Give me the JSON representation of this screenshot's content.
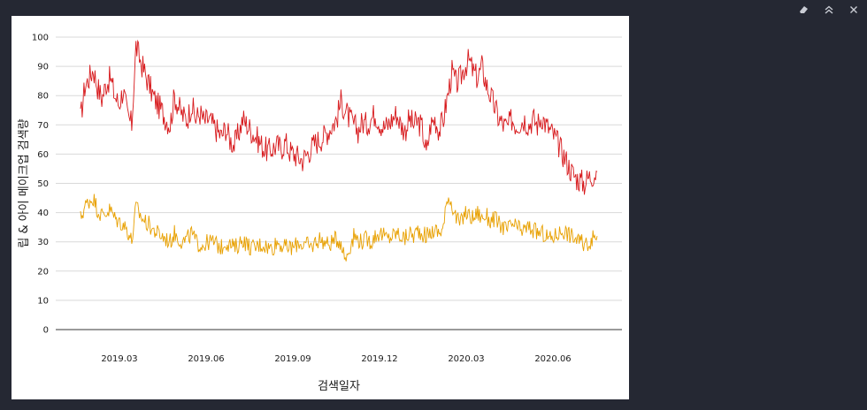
{
  "panel": {
    "icons": [
      {
        "name": "eraser-icon"
      },
      {
        "name": "collapse-icon"
      },
      {
        "name": "close-icon"
      }
    ]
  },
  "chart_data": {
    "type": "line",
    "title": "",
    "xlabel": "검색일자",
    "ylabel": "립 & 아이 메이크업 검색량",
    "ylim": [
      0,
      100
    ],
    "yticks": [
      0,
      10,
      20,
      30,
      40,
      50,
      60,
      70,
      80,
      90,
      100
    ],
    "xticks": [
      "2019.03",
      "2019.06",
      "2019.09",
      "2019.12",
      "2020.03",
      "2020.06"
    ],
    "grid": true,
    "x_start": "2019.01",
    "x_end": "2020.08",
    "series": [
      {
        "color": "#d7191c",
        "values": [
          72,
          83,
          86,
          89,
          83,
          79,
          84,
          86,
          80,
          77,
          82,
          73,
          70,
          97,
          92,
          88,
          84,
          80,
          77,
          75,
          72,
          70,
          80,
          76,
          73,
          72,
          77,
          72,
          74,
          71,
          72,
          70,
          68,
          66,
          69,
          65,
          63,
          67,
          72,
          70,
          68,
          66,
          64,
          62,
          61,
          62,
          63,
          62,
          64,
          61,
          60,
          59,
          58,
          60,
          62,
          64,
          65,
          66,
          68,
          70,
          72,
          78,
          75,
          72,
          70,
          68,
          71,
          70,
          72,
          74,
          71,
          69,
          70,
          72,
          74,
          70,
          68,
          72,
          70,
          71,
          69,
          60,
          70,
          72,
          68,
          72,
          80,
          88,
          84,
          86,
          90,
          92,
          88,
          86,
          90,
          84,
          80,
          76,
          72,
          70,
          69,
          72,
          70,
          71,
          72,
          70,
          72,
          70,
          73,
          70,
          68,
          66,
          63,
          60,
          57,
          54,
          52,
          51,
          50,
          52,
          53,
          54
        ]
      },
      {
        "color": "#e8a000",
        "values": [
          38,
          42,
          44,
          45,
          41,
          39,
          40,
          41,
          38,
          37,
          36,
          34,
          30,
          42,
          39,
          37,
          36,
          34,
          33,
          32,
          31,
          30,
          33,
          31,
          30,
          31,
          33,
          30,
          29,
          29,
          30,
          30,
          29,
          28,
          30,
          29,
          28,
          29,
          31,
          29,
          28,
          28,
          29,
          29,
          28,
          28,
          30,
          29,
          28,
          28,
          28,
          30,
          29,
          29,
          28,
          30,
          31,
          30,
          29,
          30,
          31,
          30,
          24,
          28,
          32,
          31,
          30,
          31,
          30,
          32,
          33,
          32,
          31,
          32,
          33,
          32,
          31,
          33,
          32,
          34,
          33,
          32,
          33,
          34,
          33,
          35,
          46,
          43,
          38,
          36,
          40,
          39,
          38,
          40,
          38,
          39,
          37,
          38,
          36,
          35,
          34,
          36,
          35,
          34,
          34,
          35,
          34,
          33,
          33,
          32,
          31,
          32,
          33,
          34,
          33,
          32,
          31,
          30,
          29,
          30,
          31,
          32
        ]
      }
    ]
  }
}
